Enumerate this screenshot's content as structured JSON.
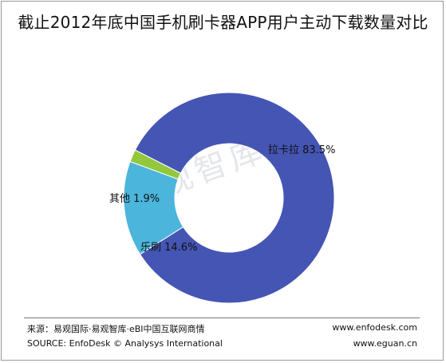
{
  "chart_data": {
    "type": "pie",
    "title": "截止2012年底中国手机刷卡器APP用户主动下载数量对比",
    "categories": [
      "拉卡拉",
      "乐刷",
      "其他"
    ],
    "values": [
      83.5,
      14.6,
      1.9
    ],
    "labels": [
      "拉卡拉 83.5%",
      "乐刷 14.6%",
      "其他 1.9%"
    ],
    "colors": [
      "#4555b4",
      "#4bb5dc",
      "#93c83d"
    ],
    "donut": true
  },
  "watermark": "易观智库",
  "footer": {
    "source_cn": "来源：易观国际·易观智库·eBI中国互联网商情",
    "source_en": "SOURCE: EnfoDesk © Analysys International",
    "url1": "www.enfodesk.com",
    "url2": "www.eguan.cn"
  }
}
